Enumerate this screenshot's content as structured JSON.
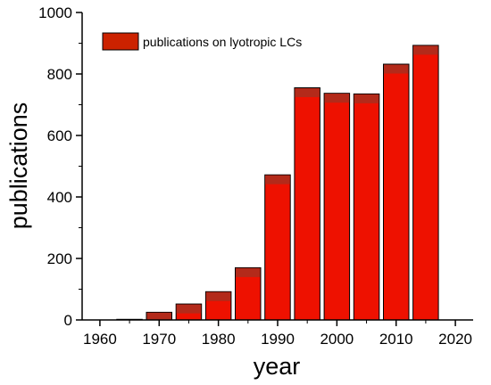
{
  "chart_data": {
    "type": "bar",
    "x": [
      1965,
      1970,
      1975,
      1980,
      1985,
      1990,
      1995,
      2000,
      2005,
      2010,
      2015
    ],
    "values": [
      2,
      25,
      52,
      92,
      170,
      472,
      755,
      737,
      735,
      832,
      893
    ],
    "bar_width_years": 4.3,
    "xlabel": "year",
    "ylabel": "publications",
    "xlim": [
      1957,
      2023
    ],
    "ylim": [
      0,
      1000
    ],
    "x_ticks": [
      1960,
      1970,
      1980,
      1990,
      2000,
      2010,
      2020
    ],
    "y_ticks": [
      0,
      200,
      400,
      600,
      800,
      1000
    ],
    "series": [
      {
        "name": "publications on lyotropic LCs"
      }
    ],
    "legend_position": "top-left",
    "bar_fill": "#ee1100",
    "bar_stroke": "#000000",
    "bar_shade": "#b32a1a",
    "legend_swatch": "#cc2200",
    "grid": false
  }
}
